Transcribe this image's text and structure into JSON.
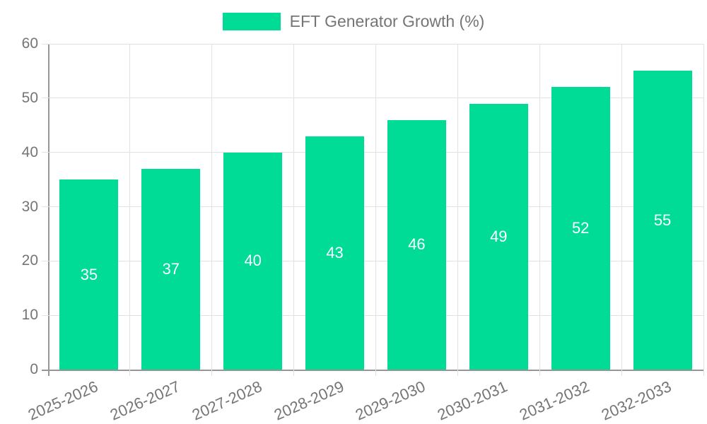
{
  "legend": {
    "label": "EFT Generator Growth (%)"
  },
  "chart_data": {
    "type": "bar",
    "title": "EFT Generator Growth (%)",
    "categories": [
      "2025-2026",
      "2026-2027",
      "2027-2028",
      "2028-2029",
      "2029-2030",
      "2030-2031",
      "2031-2032",
      "2032-2033"
    ],
    "values": [
      35,
      37,
      40,
      43,
      46,
      49,
      52,
      55
    ],
    "xlabel": "",
    "ylabel": "",
    "ylim": [
      0,
      60
    ],
    "yticks": [
      0,
      10,
      20,
      30,
      40,
      50,
      60
    ],
    "grid": true,
    "legend_position": "top",
    "bar_labels_inside": true,
    "colors": {
      "bar": "#00dc96",
      "bar_label": "#ffffff",
      "axis": "#969696",
      "grid": "#e2e2e2",
      "tick_text": "#757575"
    }
  }
}
